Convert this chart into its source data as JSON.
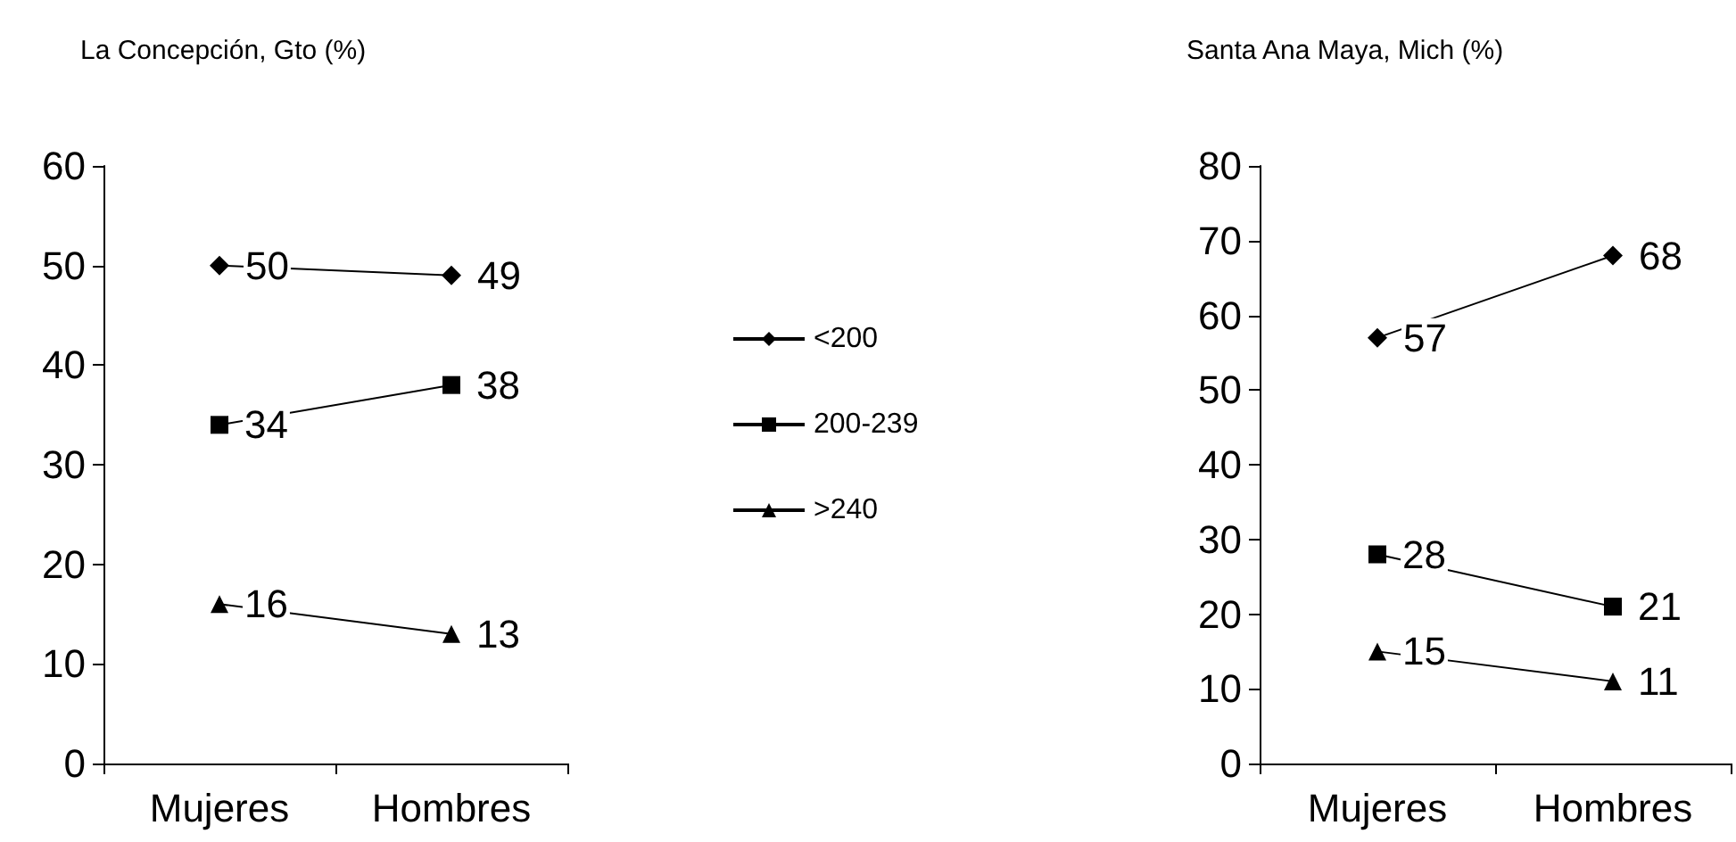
{
  "chart_data": [
    {
      "type": "line",
      "title": "La Concepción, Gto (%)",
      "categories": [
        "Mujeres",
        "Hombres"
      ],
      "series": [
        {
          "name": "<200",
          "color": "#000000",
          "marker": "diamond",
          "values": [
            50,
            49
          ]
        },
        {
          "name": "200-239",
          "color": "#000000",
          "marker": "square",
          "values": [
            34,
            38
          ]
        },
        {
          "name": ">240",
          "color": "#000000",
          "marker": "triangle",
          "values": [
            16,
            13
          ]
        }
      ],
      "ylim": [
        0,
        60
      ],
      "yticks": [
        0,
        10,
        20,
        30,
        40,
        50,
        60
      ],
      "data_labels": true,
      "legend": "right",
      "grid": false
    },
    {
      "type": "line",
      "title": "Santa Ana Maya, Mich (%)",
      "categories": [
        "Mujeres",
        "Hombres"
      ],
      "series": [
        {
          "color": "#000000",
          "marker": "diamond",
          "values": [
            57,
            68
          ]
        },
        {
          "color": "#000000",
          "marker": "square",
          "values": [
            28,
            21
          ]
        },
        {
          "color": "#000000",
          "marker": "triangle",
          "values": [
            15,
            11
          ]
        }
      ],
      "ylim": [
        0,
        80
      ],
      "yticks": [
        0,
        10,
        20,
        30,
        40,
        50,
        60,
        70,
        80
      ],
      "data_labels": true,
      "grid": false
    }
  ]
}
